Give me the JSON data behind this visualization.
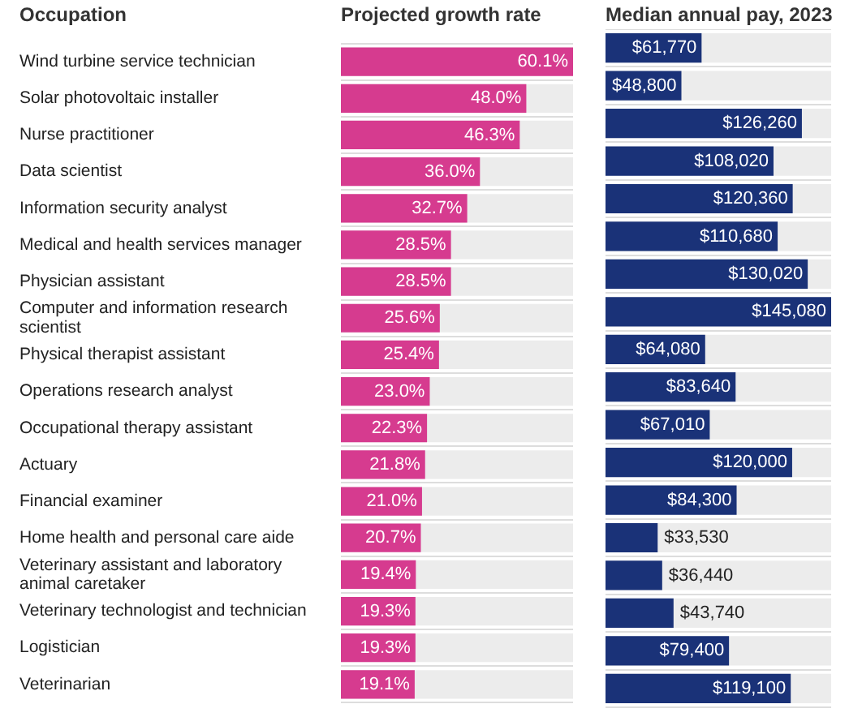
{
  "chart_data": [
    {
      "type": "bar",
      "orientation": "horizontal",
      "title": "Projected growth rate",
      "ylabel": "Occupation",
      "categories": [
        "Wind turbine service technician",
        "Solar photovoltaic installer",
        "Nurse practitioner",
        "Data scientist",
        "Information security analyst",
        "Medical and health services manager",
        "Physician assistant",
        "Computer and information research scientist",
        "Physical therapist assistant",
        "Operations research analyst",
        "Occupational therapy assistant",
        "Actuary",
        "Financial examiner",
        "Home health and personal care aide",
        "Veterinary assistant and laboratory animal caretaker",
        "Veterinary technologist and technician",
        "Logistician",
        "Veterinarian"
      ],
      "values": [
        60.1,
        48.0,
        46.3,
        36.0,
        32.7,
        28.5,
        28.5,
        25.6,
        25.4,
        23.0,
        22.3,
        21.8,
        21.0,
        20.7,
        19.4,
        19.3,
        19.3,
        19.1
      ],
      "value_labels": [
        "60.1%",
        "48.0%",
        "46.3%",
        "36.0%",
        "32.7%",
        "28.5%",
        "28.5%",
        "25.6%",
        "25.4%",
        "23.0%",
        "22.3%",
        "21.8%",
        "21.0%",
        "20.7%",
        "19.4%",
        "19.3%",
        "19.3%",
        "19.1%"
      ],
      "color": "#d63b8f",
      "xlim": [
        0,
        60.1
      ],
      "tick_labels": "y",
      "grid": "y",
      "legend": false
    },
    {
      "type": "bar",
      "orientation": "horizontal",
      "title": "Median annual pay, 2023",
      "categories": [
        null,
        null,
        null,
        null,
        null,
        null,
        null,
        null,
        null,
        null,
        null,
        null,
        null,
        null,
        null,
        null,
        null,
        null
      ],
      "values": [
        61770,
        48800,
        126260,
        108020,
        120360,
        110680,
        130020,
        145080,
        64080,
        83640,
        67010,
        120000,
        84300,
        33530,
        36440,
        43740,
        79400,
        119100
      ],
      "value_labels": [
        "$61,770",
        "$48,800",
        "$126,260",
        "$108,020",
        "$120,360",
        "$110,680",
        "$130,020",
        "$145,080",
        "$64,080",
        "$83,640",
        "$67,010",
        "$120,000",
        "$84,300",
        "$33,530",
        "$36,440",
        "$43,740",
        "$79,400",
        "$119,100"
      ],
      "color": "#1a3278",
      "xlim": [
        0,
        145080
      ],
      "tick_labels": false,
      "grid": "y",
      "legend": false
    }
  ]
}
